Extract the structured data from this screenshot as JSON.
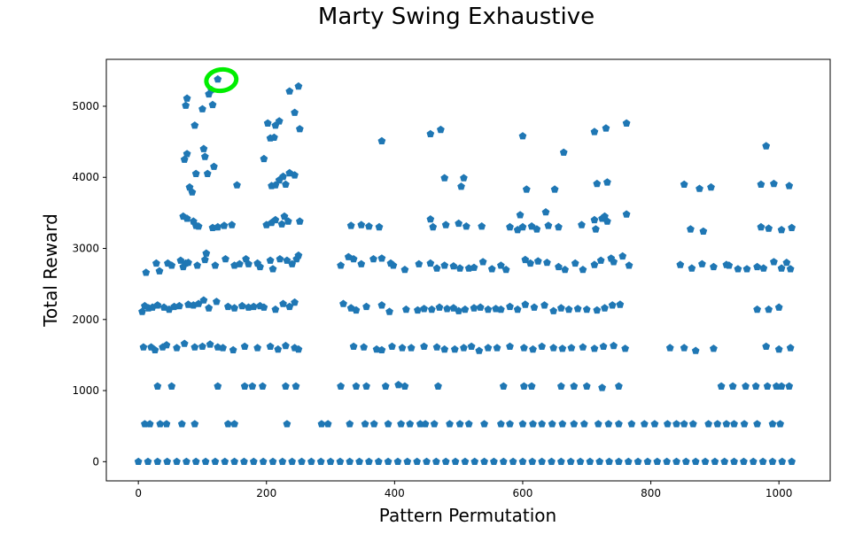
{
  "chart_data": {
    "type": "scatter",
    "title": "Marty Swing Exhaustive",
    "xlabel": "Pattern Permutation",
    "ylabel": "Total Reward",
    "xlim": [
      -50,
      1080
    ],
    "ylim": [
      -270,
      5660
    ],
    "xticks": [
      0,
      200,
      400,
      600,
      800,
      1000
    ],
    "yticks": [
      0,
      1000,
      2000,
      3000,
      4000,
      5000
    ],
    "xtick_labels": [
      "0",
      "200",
      "400",
      "600",
      "800",
      "1000"
    ],
    "ytick_labels": [
      "0",
      "1000",
      "2000",
      "3000",
      "4000",
      "5000"
    ],
    "grid": false,
    "legend": "none",
    "marker": "pentagon",
    "marker_color": "#1f77b4",
    "highlight": {
      "x": 124,
      "y": 5380,
      "color": "#00ee00",
      "note": "hand-drawn circle around maximum point"
    },
    "series": [
      {
        "x": [
          12,
          28,
          33,
          46,
          52,
          66,
          70,
          74,
          78,
          92,
          104,
          106,
          120,
          136,
          150,
          158,
          168,
          172,
          186,
          190,
          206,
          210,
          221,
          232,
          240,
          247,
          250,
          316,
          328,
          336,
          348,
          367,
          380,
          394,
          398,
          416,
          438,
          456,
          466,
          478,
          492,
          502,
          516,
          524,
          538,
          552,
          566,
          574,
          604,
          612,
          624,
          638,
          656,
          666,
          682,
          694,
          712,
          722,
          738,
          742,
          756,
          766,
          846,
          864,
          880,
          898,
          918,
          922,
          936,
          950,
          966,
          976,
          992,
          1004,
          1012,
          1018
        ],
        "y": [
          2660,
          2790,
          2680,
          2790,
          2760,
          2830,
          2740,
          2790,
          2800,
          2760,
          2840,
          2930,
          2760,
          2850,
          2760,
          2780,
          2850,
          2780,
          2790,
          2740,
          2830,
          2710,
          2850,
          2830,
          2780,
          2850,
          2900,
          2760,
          2880,
          2850,
          2780,
          2850,
          2860,
          2790,
          2760,
          2700,
          2780,
          2790,
          2720,
          2760,
          2750,
          2720,
          2720,
          2730,
          2810,
          2710,
          2760,
          2700,
          2840,
          2790,
          2820,
          2800,
          2740,
          2700,
          2790,
          2700,
          2770,
          2830,
          2860,
          2810,
          2890,
          2760,
          2770,
          2720,
          2780,
          2740,
          2770,
          2760,
          2710,
          2710,
          2740,
          2720,
          2810,
          2720,
          2800,
          2710
        ]
      },
      {
        "x": [
          6,
          10,
          16,
          22,
          30,
          40,
          48,
          56,
          64,
          78,
          86,
          94,
          102,
          110,
          122,
          140,
          150,
          162,
          172,
          180,
          190,
          196,
          214,
          226,
          236,
          244,
          320,
          332,
          340,
          356,
          380,
          392,
          418,
          436,
          446,
          458,
          470,
          482,
          492,
          500,
          510,
          524,
          534,
          546,
          558,
          566,
          580,
          592,
          604,
          618,
          634,
          648,
          660,
          672,
          686,
          700,
          716,
          728,
          740,
          752,
          966,
          984,
          1000
        ],
        "y": [
          2110,
          2190,
          2160,
          2170,
          2200,
          2170,
          2140,
          2180,
          2190,
          2210,
          2200,
          2220,
          2270,
          2160,
          2250,
          2180,
          2160,
          2190,
          2170,
          2180,
          2190,
          2170,
          2140,
          2220,
          2180,
          2240,
          2220,
          2160,
          2130,
          2180,
          2200,
          2110,
          2140,
          2130,
          2150,
          2140,
          2170,
          2150,
          2160,
          2120,
          2140,
          2160,
          2170,
          2140,
          2150,
          2140,
          2180,
          2140,
          2210,
          2170,
          2200,
          2120,
          2160,
          2140,
          2150,
          2140,
          2130,
          2160,
          2200,
          2210,
          2140,
          2140,
          2170
        ]
      },
      {
        "x": [
          8,
          20,
          26,
          38,
          44,
          60,
          72,
          88,
          100,
          112,
          124,
          132,
          148,
          166,
          186,
          206,
          218,
          230,
          244,
          250,
          336,
          352,
          372,
          380,
          396,
          412,
          426,
          446,
          466,
          478,
          494,
          508,
          520,
          532,
          546,
          560,
          580,
          602,
          616,
          630,
          648,
          662,
          676,
          694,
          712,
          726,
          742,
          760,
          830,
          852,
          870,
          898,
          980,
          1000,
          1018
        ],
        "y": [
          1610,
          1610,
          1570,
          1610,
          1640,
          1600,
          1660,
          1610,
          1620,
          1650,
          1610,
          1600,
          1570,
          1620,
          1600,
          1620,
          1580,
          1630,
          1600,
          1580,
          1620,
          1610,
          1580,
          1570,
          1620,
          1600,
          1600,
          1620,
          1610,
          1580,
          1580,
          1600,
          1620,
          1560,
          1600,
          1600,
          1620,
          1600,
          1580,
          1620,
          1600,
          1590,
          1600,
          1610,
          1590,
          1620,
          1630,
          1590,
          1600,
          1600,
          1560,
          1590,
          1620,
          1580,
          1600
        ]
      },
      {
        "x": [
          30,
          52,
          124,
          166,
          178,
          194,
          230,
          246,
          316,
          340,
          356,
          386,
          406,
          416,
          468,
          570,
          602,
          614,
          660,
          680,
          700,
          724,
          750,
          910,
          928,
          948,
          964,
          982,
          996,
          1004,
          1016
        ],
        "y": [
          1060,
          1060,
          1060,
          1060,
          1060,
          1060,
          1060,
          1060,
          1060,
          1060,
          1060,
          1060,
          1080,
          1060,
          1060,
          1060,
          1060,
          1060,
          1060,
          1060,
          1060,
          1040,
          1060,
          1060,
          1060,
          1060,
          1060,
          1060,
          1060,
          1060,
          1060
        ]
      },
      {
        "x": [
          10,
          18,
          34,
          44,
          68,
          88,
          140,
          150,
          232,
          286,
          296,
          330,
          354,
          368,
          390,
          410,
          424,
          440,
          448,
          462,
          486,
          502,
          516,
          540,
          566,
          580,
          600,
          616,
          630,
          646,
          662,
          680,
          696,
          718,
          734,
          750,
          770,
          790,
          806,
          826,
          840,
          852,
          866,
          890,
          904,
          918,
          930,
          946,
          966,
          990,
          1002
        ],
        "y": [
          530,
          530,
          530,
          530,
          530,
          530,
          530,
          530,
          530,
          530,
          530,
          530,
          530,
          530,
          530,
          530,
          530,
          530,
          530,
          530,
          530,
          530,
          530,
          530,
          530,
          530,
          530,
          530,
          530,
          530,
          530,
          530,
          530,
          530,
          530,
          530,
          530,
          530,
          530,
          530,
          530,
          530,
          530,
          530,
          530,
          530,
          530,
          530,
          530,
          530,
          530
        ]
      },
      {
        "x": [
          0,
          15,
          30,
          45,
          60,
          75,
          90,
          105,
          120,
          135,
          150,
          165,
          180,
          195,
          210,
          225,
          240,
          255,
          270,
          285,
          300,
          315,
          330,
          345,
          360,
          375,
          390,
          405,
          420,
          435,
          450,
          465,
          480,
          495,
          510,
          525,
          540,
          555,
          570,
          585,
          600,
          615,
          630,
          645,
          660,
          675,
          690,
          705,
          720,
          735,
          750,
          765,
          780,
          795,
          810,
          825,
          840,
          855,
          870,
          885,
          900,
          915,
          930,
          945,
          960,
          975,
          990,
          1005,
          1020
        ],
        "y": [
          0,
          0,
          0,
          0,
          0,
          0,
          0,
          0,
          0,
          0,
          0,
          0,
          0,
          0,
          0,
          0,
          0,
          0,
          0,
          0,
          0,
          0,
          0,
          0,
          0,
          0,
          0,
          0,
          0,
          0,
          0,
          0,
          0,
          0,
          0,
          0,
          0,
          0,
          0,
          0,
          0,
          0,
          0,
          0,
          0,
          0,
          0,
          0,
          0,
          0,
          0,
          0,
          0,
          0,
          0,
          0,
          0,
          0,
          0,
          0,
          0,
          0,
          0,
          0,
          0,
          0,
          0,
          0,
          0
        ]
      },
      {
        "x": [
          70,
          76,
          86,
          90,
          94,
          116,
          124,
          134,
          146,
          200,
          208,
          214,
          224,
          228,
          234,
          252,
          332,
          348,
          360,
          376,
          456,
          460,
          480,
          500,
          512,
          536,
          580,
          592,
          600,
          614,
          622,
          640,
          656,
          692,
          714,
          724,
          728,
          732,
          762,
          862,
          882,
          972,
          984,
          1004,
          1020
        ],
        "y": [
          3450,
          3420,
          3380,
          3320,
          3310,
          3290,
          3300,
          3320,
          3330,
          3330,
          3360,
          3400,
          3340,
          3450,
          3380,
          3380,
          3320,
          3330,
          3310,
          3300,
          3410,
          3300,
          3330,
          3350,
          3310,
          3310,
          3300,
          3260,
          3300,
          3310,
          3270,
          3320,
          3300,
          3330,
          3270,
          3420,
          3450,
          3380,
          3480,
          3270,
          3240,
          3300,
          3280,
          3260,
          3290
        ]
      },
      {
        "x": [
          72,
          76,
          80,
          84,
          90,
          104,
          108,
          118,
          154,
          196,
          208,
          214,
          220,
          226,
          230,
          236,
          244,
          478,
          504,
          508,
          596,
          606,
          636,
          650,
          712,
          716,
          732,
          852,
          876,
          894,
          972,
          992,
          1016
        ],
        "y": [
          4250,
          4330,
          3860,
          3790,
          4050,
          4290,
          4050,
          4150,
          3890,
          4260,
          3880,
          3890,
          3960,
          4010,
          3900,
          4060,
          4030,
          3990,
          3870,
          3990,
          3470,
          3830,
          3510,
          3830,
          3400,
          3910,
          3930,
          3900,
          3840,
          3860,
          3900,
          3910,
          3880
        ]
      },
      {
        "x": [
          74,
          88,
          100,
          110,
          114,
          124,
          202,
          206,
          212,
          214,
          220,
          244,
          252,
          380,
          456,
          472,
          600,
          664,
          712,
          730,
          762,
          980
        ],
        "y": [
          5010,
          4730,
          4960,
          5170,
          5230,
          5380,
          4760,
          4550,
          4560,
          4730,
          4790,
          4910,
          4680,
          4510,
          4610,
          4670,
          4580,
          4350,
          4640,
          4690,
          4760,
          4440
        ]
      },
      {
        "x": [
          76,
          102,
          116,
          236,
          250
        ],
        "y": [
          5110,
          4400,
          5020,
          5210,
          5280
        ]
      }
    ]
  }
}
